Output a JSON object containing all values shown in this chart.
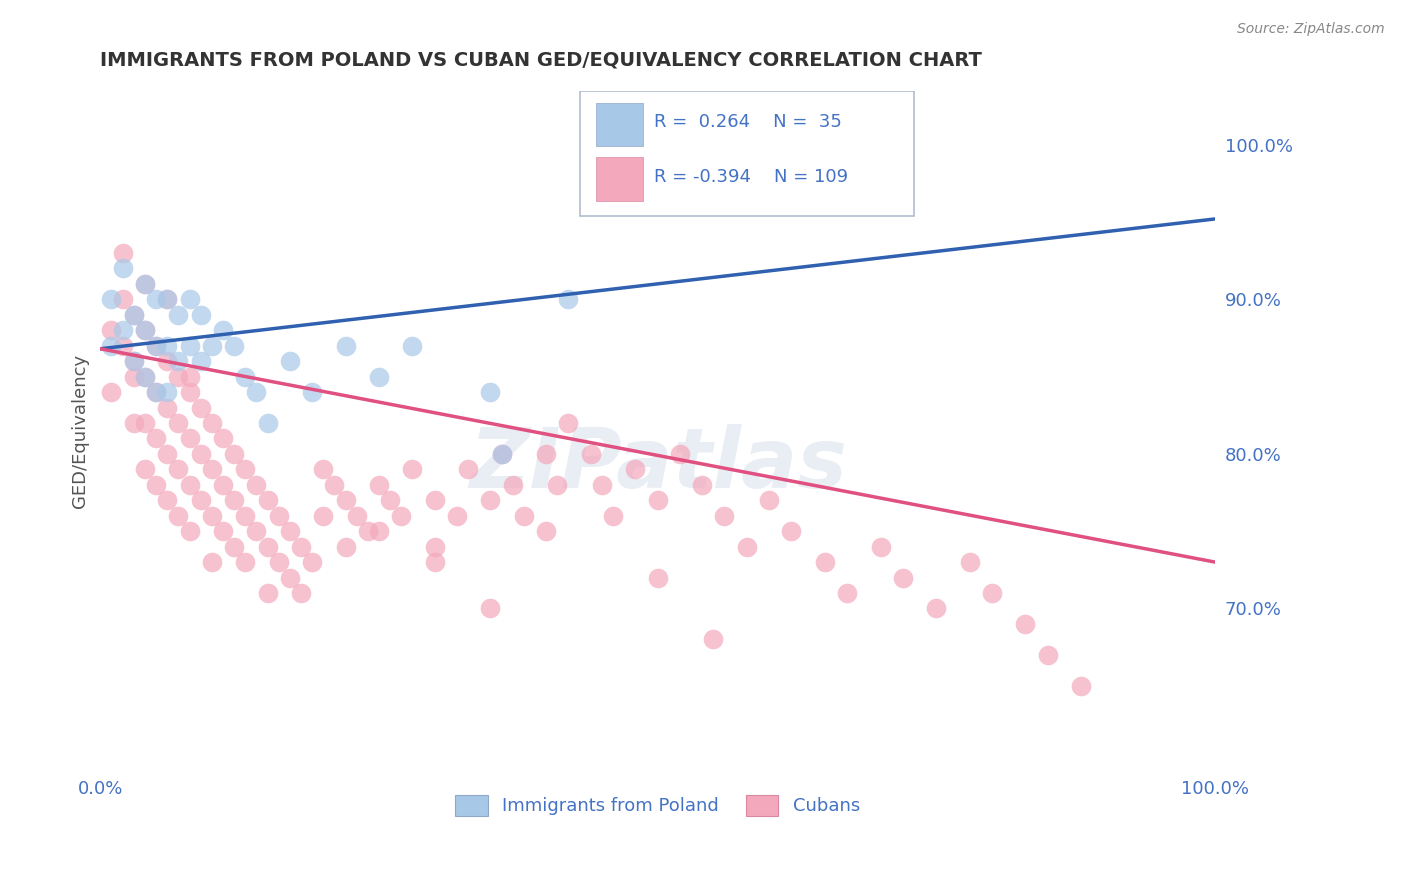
{
  "title": "IMMIGRANTS FROM POLAND VS CUBAN GED/EQUIVALENCY CORRELATION CHART",
  "source": "Source: ZipAtlas.com",
  "ylabel": "GED/Equivalency",
  "xmin": 0.0,
  "xmax": 1.0,
  "ymin": 0.595,
  "ymax": 1.035,
  "right_yticks": [
    0.7,
    0.8,
    0.9,
    1.0
  ],
  "right_yticklabels": [
    "70.0%",
    "80.0%",
    "90.0%",
    "100.0%"
  ],
  "poland_R": 0.264,
  "poland_N": 35,
  "cuban_R": -0.394,
  "cuban_N": 109,
  "poland_color": "#a8c8e8",
  "cuban_color": "#f4a8bc",
  "trend_poland_color": "#3060b0",
  "trend_cuban_color": "#e05080",
  "legend_text_color": "#4472c4",
  "title_color": "#333333",
  "source_color": "#888888",
  "background": "#ffffff",
  "grid_color": "#c8d4e8",
  "watermark": "ZIPatlas",
  "poland_trend_x0": 0.0,
  "poland_trend_y0": 0.868,
  "poland_trend_x1": 1.0,
  "poland_trend_y1": 0.952,
  "cuban_trend_x0": 0.0,
  "cuban_trend_y0": 0.868,
  "cuban_trend_x1": 1.0,
  "cuban_trend_y1": 0.73
}
